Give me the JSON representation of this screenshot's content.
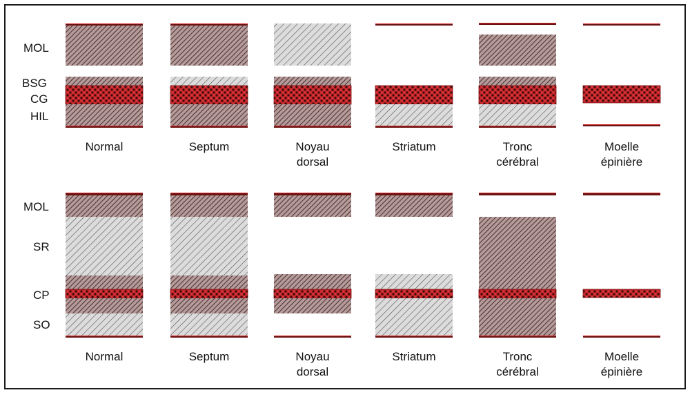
{
  "colors": {
    "frame": "#1a1a1a",
    "band_fill": "#c8262b",
    "band_dots": "#3a0a0a",
    "hatch_dense_bg": "#b79a9a",
    "hatch_dense_line": "#4a3838",
    "hatch_light_bg": "#dcdcdc",
    "hatch_light_line": "#555555",
    "edge_line": "#6b1212",
    "edge_accent": "#d12a2a"
  },
  "hatch_legend": {
    "dense": "dense diagonal hatching (darker, reddish-grey)",
    "light": "light diagonal hatching (pale grey)",
    "band": "red cross-hatched cell band"
  },
  "top_panel": {
    "layer_labels": [
      "MOL",
      "BSG",
      "CG",
      "HIL"
    ],
    "columns": [
      {
        "label_lines": [
          "Normal"
        ],
        "segments": [
          "top-line",
          "MOL:dense",
          "BSG:dense",
          "CG:band",
          "HIL:dense",
          "bottom-line"
        ]
      },
      {
        "label_lines": [
          "Septum"
        ],
        "segments": [
          "top-line",
          "MOL:dense",
          "BSG:light",
          "CG:band",
          "HIL:dense",
          "bottom-line"
        ]
      },
      {
        "label_lines": [
          "Noyau",
          "dorsal"
        ],
        "segments": [
          "MOL:light",
          "BSG:dense",
          "CG:band",
          "HIL:dense",
          "bottom-line"
        ]
      },
      {
        "label_lines": [
          "Striatum"
        ],
        "segments": [
          "top-line",
          "CG:band",
          "HIL:light",
          "bottom-line"
        ]
      },
      {
        "label_lines": [
          "Tronc",
          "cérébral"
        ],
        "segments": [
          "top-line",
          "MOL:dense",
          "BSG:dense",
          "CG:band",
          "HIL:light",
          "bottom-line"
        ]
      },
      {
        "label_lines": [
          "Moelle",
          "épinière"
        ],
        "segments": [
          "top-line",
          "CG:band",
          "bottom-line"
        ]
      }
    ]
  },
  "bottom_panel": {
    "layer_labels": [
      "MOL",
      "SR",
      "CP",
      "SO"
    ],
    "columns": [
      {
        "label_lines": [
          "Normal"
        ],
        "segments": [
          "top-line",
          "MOL:dense",
          "SR:light",
          "SR-lower:dense",
          "CP:band",
          "SO-upper:dense",
          "SO:light",
          "bottom-line"
        ]
      },
      {
        "label_lines": [
          "Septum"
        ],
        "segments": [
          "top-line",
          "MOL:dense",
          "SR:light",
          "SR-lower:dense",
          "CP:band",
          "SO-upper:dense",
          "SO:light",
          "bottom-line"
        ]
      },
      {
        "label_lines": [
          "Noyau",
          "dorsal"
        ],
        "segments": [
          "top-line",
          "MOL:dense",
          "SR-lower:dense",
          "CP:band",
          "SO-upper:dense",
          "bottom-line"
        ]
      },
      {
        "label_lines": [
          "Striatum"
        ],
        "segments": [
          "top-line",
          "MOL:dense",
          "SR-lower:light",
          "CP:band",
          "SO:light",
          "bottom-line"
        ]
      },
      {
        "label_lines": [
          "Tronc",
          "cérébral"
        ],
        "segments": [
          "top-line",
          "SR:dense",
          "CP:band",
          "SO:dense",
          "bottom-line"
        ]
      },
      {
        "label_lines": [
          "Moelle",
          "épinière"
        ],
        "segments": [
          "top-line",
          "CP:band",
          "bottom-line"
        ]
      }
    ]
  }
}
